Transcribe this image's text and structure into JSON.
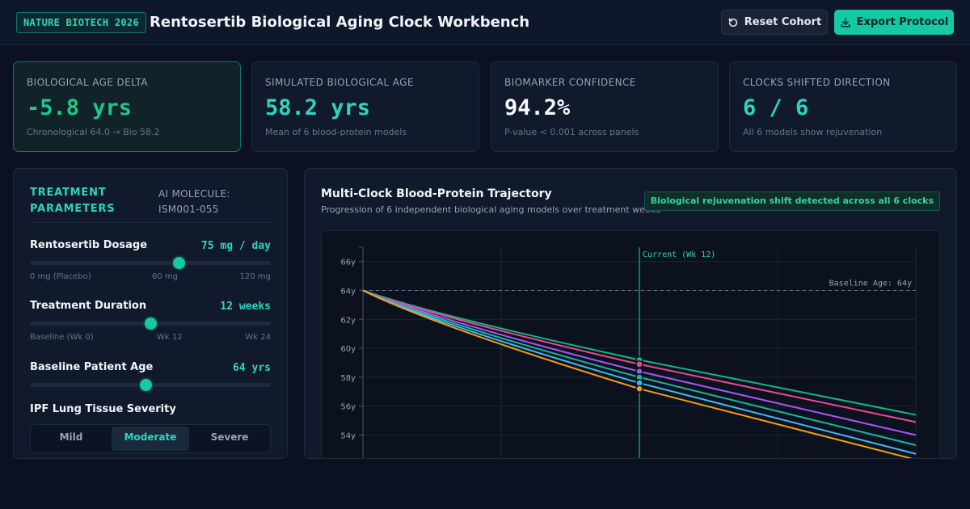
{
  "header": {
    "badge": "NATURE BIOTECH 2026",
    "title": "Rentosertib Biological Aging Clock Workbench",
    "reset_label": "Reset Cohort",
    "export_label": "Export Protocol"
  },
  "stats": [
    {
      "label": "BIOLOGICAL AGE DELTA",
      "value": "-5.8 yrs",
      "sub": "Chronological 64.0 → Bio 58.2"
    },
    {
      "label": "SIMULATED BIOLOGICAL AGE",
      "value": "58.2 yrs",
      "sub": "Mean of 6 blood-protein models"
    },
    {
      "label": "BIOMARKER CONFIDENCE",
      "value": "94.2%",
      "sub": "P-value < 0.001 across panels"
    },
    {
      "label": "CLOCKS SHIFTED DIRECTION",
      "value": "6 / 6",
      "sub": "All 6 models show rejuvenation"
    }
  ],
  "params": {
    "title": "TREATMENT PARAMETERS",
    "molecule": "AI MOLECULE: ISM001-055",
    "dosage": {
      "label": "Rentosertib Dosage",
      "value": "75 mg / day",
      "fraction": 0.62,
      "ticks": [
        "0 mg (Placebo)",
        "60 mg",
        "120 mg"
      ]
    },
    "duration": {
      "label": "Treatment Duration",
      "value": "12 weeks",
      "fraction": 0.5,
      "ticks": [
        "Baseline (Wk 0)",
        "Wk 12",
        "Wk 24"
      ]
    },
    "age": {
      "label": "Baseline Patient Age",
      "value": "64 yrs",
      "fraction": 0.48
    },
    "severity": {
      "label": "IPF Lung Tissue Severity",
      "options": [
        "Mild",
        "Moderate",
        "Severe"
      ],
      "selected": "Moderate"
    }
  },
  "chart_panel": {
    "title": "Multi-Clock Blood-Protein Trajectory",
    "subtitle": "Progression of 6 independent biological aging models over treatment weeks",
    "badge": "Biological rejuvenation shift detected across all 6 clocks"
  },
  "chart_data": {
    "type": "line",
    "x": [
      0,
      12,
      24
    ],
    "xlim": [
      0,
      24
    ],
    "ylim": [
      53.5,
      67
    ],
    "yticks": [
      "54y",
      "56y",
      "58y",
      "60y",
      "62y",
      "64y",
      "66y"
    ],
    "ytick_values": [
      54,
      56,
      58,
      60,
      62,
      64,
      66
    ],
    "baseline": {
      "value": 64,
      "label": "Baseline Age: 64y"
    },
    "current": {
      "x": 12,
      "label": "Current (Wk 12)"
    },
    "grid": true,
    "series": [
      {
        "values": [
          64.0,
          59.2,
          55.4
        ],
        "color": "#10b981"
      },
      {
        "values": [
          64.0,
          58.9,
          54.9
        ],
        "color": "#ec4899"
      },
      {
        "values": [
          64.0,
          58.4,
          54.0
        ],
        "color": "#a855f7"
      },
      {
        "values": [
          64.0,
          58.0,
          53.3
        ],
        "color": "#14b8a6"
      },
      {
        "values": [
          64.0,
          57.6,
          52.7
        ],
        "color": "#38bdf8"
      },
      {
        "values": [
          64.0,
          57.2,
          52.3
        ],
        "color": "#f59e0b"
      }
    ]
  }
}
